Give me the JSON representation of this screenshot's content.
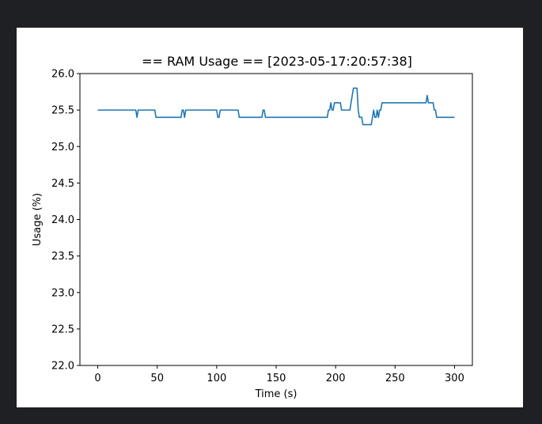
{
  "window": {
    "background": "#1f2023",
    "figure_background": "#ffffff"
  },
  "chart_data": {
    "type": "line",
    "title": "== RAM Usage == [2023-05-17:20:57:38]",
    "xlabel": "Time (s)",
    "ylabel": "Usage (%)",
    "xlim": [
      -15,
      315
    ],
    "ylim": [
      22.0,
      26.0
    ],
    "xticks": [
      0,
      50,
      100,
      150,
      200,
      250,
      300
    ],
    "xtick_labels": [
      "0",
      "50",
      "100",
      "150",
      "200",
      "250",
      "300"
    ],
    "yticks": [
      22.0,
      22.5,
      23.0,
      23.5,
      24.0,
      24.5,
      25.0,
      25.5,
      26.0
    ],
    "ytick_labels": [
      "22.0",
      "22.5",
      "23.0",
      "23.5",
      "24.0",
      "24.5",
      "25.0",
      "25.5",
      "26.0"
    ],
    "grid": false,
    "legend": "none",
    "series": [
      {
        "color": "#1f77b4",
        "x": [
          0,
          32,
          33,
          34,
          48,
          49,
          70,
          71,
          72,
          73,
          74,
          100,
          101,
          102,
          103,
          104,
          118,
          119,
          138,
          139,
          140,
          141,
          193,
          194,
          195,
          196,
          197,
          198,
          199,
          200,
          204,
          205,
          212,
          213,
          214,
          215,
          218,
          219,
          220,
          221,
          222,
          223,
          224,
          225,
          230,
          231,
          232,
          233,
          234,
          235,
          236,
          237,
          238,
          239,
          240,
          241,
          242,
          243,
          275,
          276,
          277,
          278,
          282,
          283,
          284,
          285,
          286,
          300
        ],
        "y": [
          25.5,
          25.5,
          25.4,
          25.5,
          25.5,
          25.4,
          25.4,
          25.5,
          25.5,
          25.4,
          25.5,
          25.5,
          25.4,
          25.4,
          25.5,
          25.5,
          25.5,
          25.4,
          25.4,
          25.5,
          25.5,
          25.4,
          25.4,
          25.5,
          25.5,
          25.6,
          25.5,
          25.5,
          25.6,
          25.6,
          25.6,
          25.5,
          25.5,
          25.6,
          25.7,
          25.8,
          25.8,
          25.5,
          25.4,
          25.4,
          25.4,
          25.3,
          25.3,
          25.3,
          25.3,
          25.4,
          25.5,
          25.4,
          25.4,
          25.5,
          25.4,
          25.5,
          25.5,
          25.6,
          25.6,
          25.6,
          25.6,
          25.6,
          25.6,
          25.6,
          25.7,
          25.6,
          25.6,
          25.5,
          25.5,
          25.4,
          25.4,
          25.4
        ]
      }
    ]
  }
}
